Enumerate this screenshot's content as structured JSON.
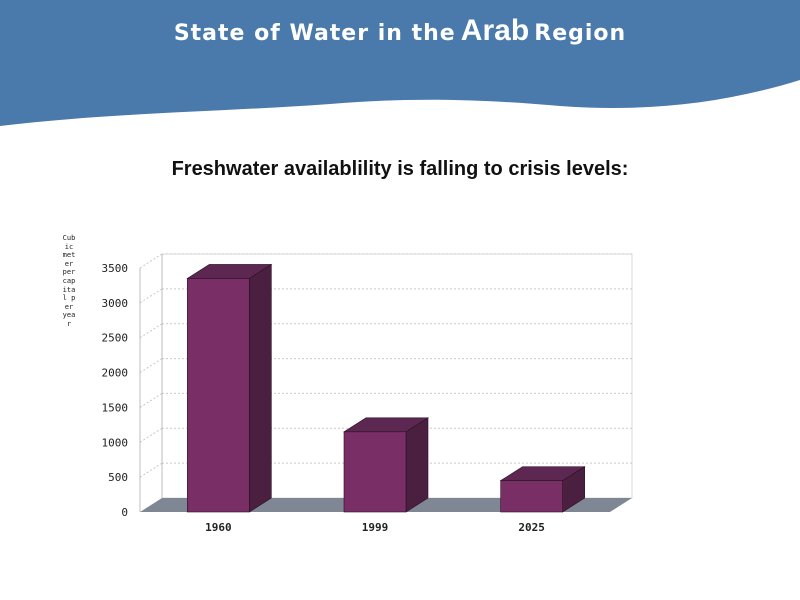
{
  "header": {
    "title_part1": "State of Water in the",
    "title_part2": "Arab",
    "title_part3": "Region",
    "background_color": "#4a79ab",
    "text_color": "#ffffff"
  },
  "chart_data": {
    "type": "bar",
    "title": "Freshwater availablility is falling to crisis levels:",
    "ylabel": "Cubic meter per capital per year",
    "xlabel": "",
    "categories": [
      "1960",
      "1999",
      "2025"
    ],
    "values": [
      3350,
      1150,
      450
    ],
    "ylim": [
      0,
      3500
    ],
    "yticks": [
      0,
      500,
      1000,
      1500,
      2000,
      2500,
      3000,
      3500
    ],
    "grid": true,
    "style": "3d",
    "bar_color": "#7a2e66",
    "bar_top_color": "#5c2750",
    "bar_side_color": "#4a1f40",
    "floor_color": "#7f8794"
  }
}
